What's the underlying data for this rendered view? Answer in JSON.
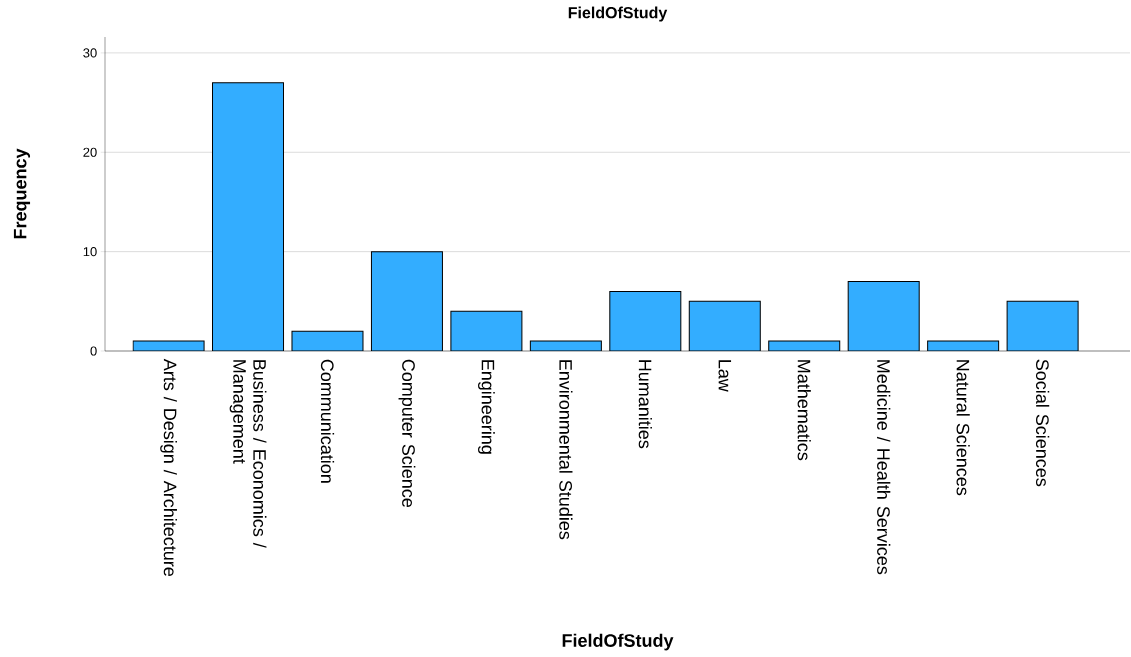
{
  "chart_data": {
    "type": "bar",
    "title": "FieldOfStudy",
    "xlabel": "FieldOfStudy",
    "ylabel": "Frequency",
    "categories": [
      "Arts / Design / Architecture",
      "Business / Economics / Management",
      "Communication",
      "Computer Science",
      "Engineering",
      "Environmental Studies",
      "Humanities",
      "Law",
      "Mathematics",
      "Medicine / Health Services",
      "Natural Sciences",
      "Social Sciences"
    ],
    "values": [
      1,
      27,
      2,
      10,
      4,
      1,
      6,
      5,
      1,
      7,
      1,
      5
    ],
    "color": "#33adff",
    "ylim": [
      0,
      31.6
    ],
    "yticks": [
      0,
      10,
      20,
      30
    ],
    "grid": "y"
  }
}
